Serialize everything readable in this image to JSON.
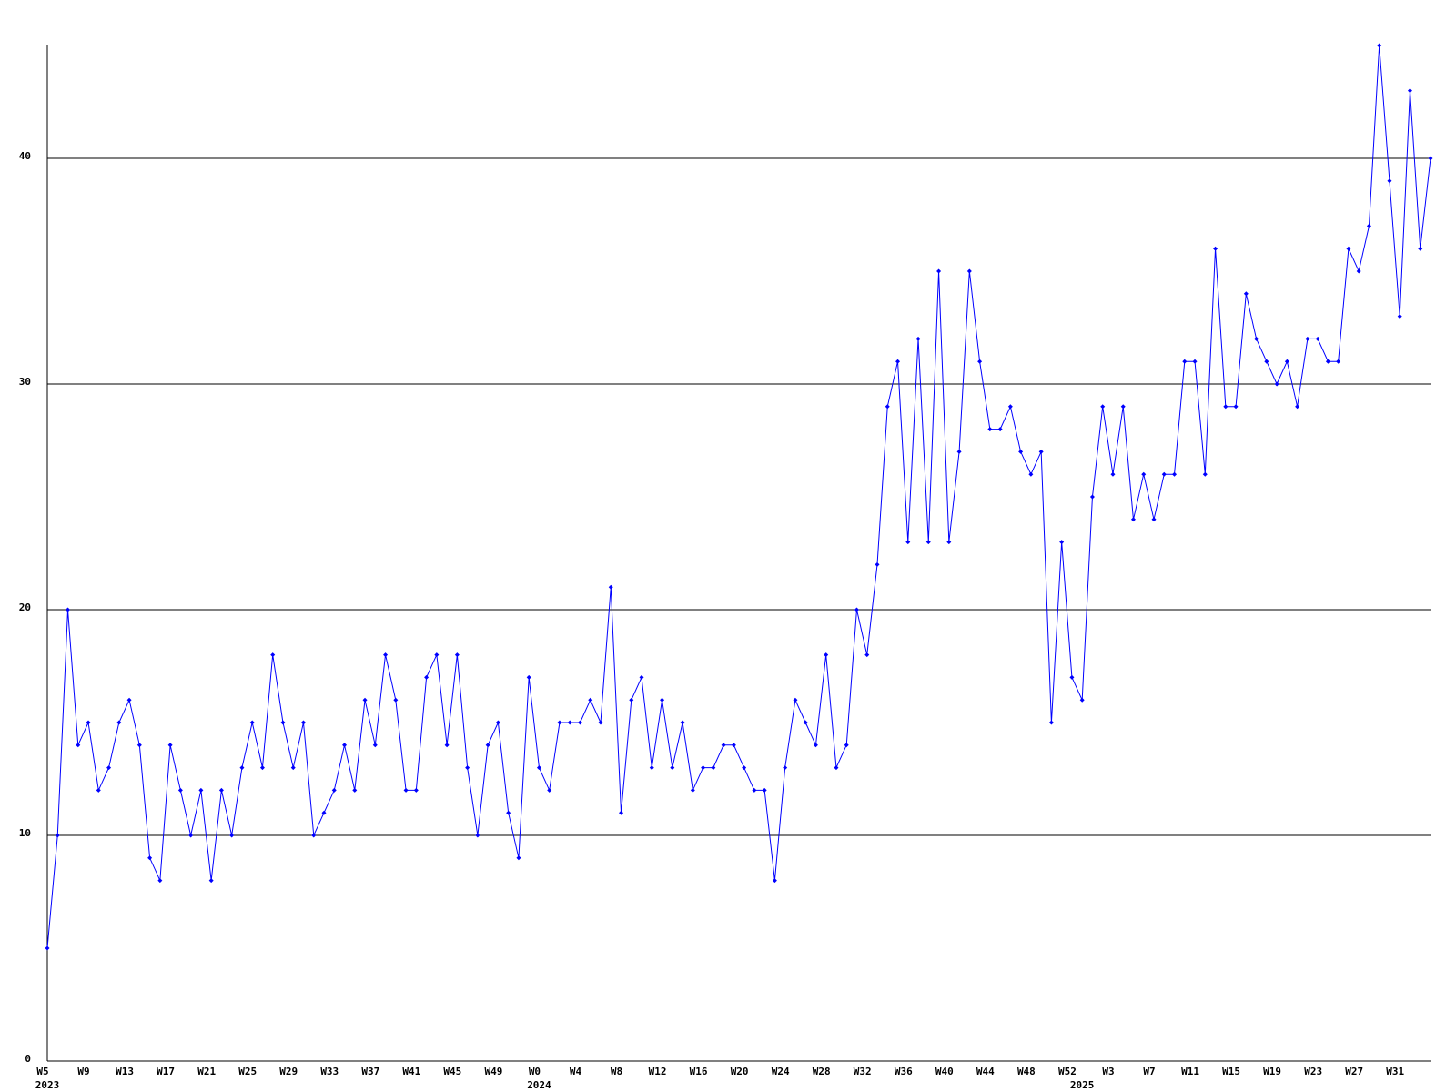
{
  "chart_data": {
    "type": "line",
    "categories": [
      "W5",
      null,
      null,
      null,
      "W9",
      null,
      null,
      null,
      "W13",
      null,
      null,
      null,
      "W17",
      null,
      null,
      null,
      "W21",
      null,
      null,
      null,
      "W25",
      null,
      null,
      null,
      "W29",
      null,
      null,
      null,
      "W33",
      null,
      null,
      null,
      "W37",
      null,
      null,
      null,
      "W41",
      null,
      null,
      null,
      "W45",
      null,
      null,
      null,
      "W49",
      null,
      null,
      null,
      "W0",
      null,
      null,
      null,
      "W4",
      null,
      null,
      null,
      "W8",
      null,
      null,
      null,
      "W12",
      null,
      null,
      null,
      "W16",
      null,
      null,
      null,
      "W20",
      null,
      null,
      null,
      "W24",
      null,
      null,
      null,
      "W28",
      null,
      null,
      null,
      "W32",
      null,
      null,
      null,
      "W36",
      null,
      null,
      null,
      "W40",
      null,
      null,
      null,
      "W44",
      null,
      null,
      null,
      "W48",
      null,
      null,
      null,
      "W52",
      null,
      null,
      null,
      "W3",
      null,
      null,
      null,
      "W7",
      null,
      null,
      null,
      "W11",
      null,
      null,
      null,
      "W15",
      null,
      null,
      null,
      "W19",
      null,
      null,
      null,
      "W23",
      null,
      null,
      null,
      "W27",
      null,
      null,
      null,
      "W31",
      null,
      null,
      null
    ],
    "year_labels": [
      "2023",
      null,
      null,
      null,
      null,
      null,
      null,
      null,
      null,
      null,
      null,
      null,
      null,
      null,
      null,
      null,
      null,
      null,
      null,
      null,
      null,
      null,
      null,
      null,
      null,
      null,
      null,
      null,
      null,
      null,
      null,
      null,
      null,
      null,
      null,
      null,
      null,
      null,
      null,
      null,
      null,
      null,
      null,
      null,
      null,
      null,
      null,
      null,
      "2024",
      null,
      null,
      null,
      null,
      null,
      null,
      null,
      null,
      null,
      null,
      null,
      null,
      null,
      null,
      null,
      null,
      null,
      null,
      null,
      null,
      null,
      null,
      null,
      null,
      null,
      null,
      null,
      null,
      null,
      null,
      null,
      null,
      null,
      null,
      null,
      null,
      null,
      null,
      null,
      null,
      null,
      null,
      null,
      null,
      null,
      null,
      null,
      null,
      null,
      null,
      null,
      null,
      "2025",
      null,
      null,
      null,
      null,
      null,
      null,
      null,
      null,
      null,
      null,
      null,
      null,
      null,
      null,
      null,
      null,
      null,
      null,
      null,
      null,
      null,
      null,
      null,
      null,
      null,
      null,
      null,
      null,
      null,
      null,
      null,
      null,
      null,
      null
    ],
    "series": [
      {
        "color": "#0000ff",
        "values": [
          5,
          10,
          20,
          14,
          15,
          12,
          13,
          15,
          16,
          14,
          9,
          8,
          14,
          12,
          10,
          12,
          8,
          12,
          10,
          13,
          15,
          13,
          18,
          15,
          13,
          15,
          10,
          11,
          12,
          14,
          12,
          16,
          14,
          18,
          16,
          12,
          12,
          17,
          18,
          14,
          18,
          13,
          10,
          14,
          15,
          11,
          9,
          17,
          13,
          12,
          15,
          15,
          15,
          16,
          15,
          21,
          11,
          16,
          17,
          13,
          16,
          13,
          15,
          12,
          13,
          13,
          14,
          14,
          13,
          12,
          12,
          8,
          13,
          16,
          15,
          14,
          18,
          13,
          14,
          20,
          18,
          22,
          29,
          31,
          23,
          32,
          23,
          35,
          23,
          27,
          35,
          31,
          28,
          28,
          29,
          27,
          26,
          27,
          15,
          23,
          17,
          16,
          25,
          29,
          26,
          29,
          24,
          26,
          24,
          26,
          26,
          31,
          31,
          26,
          36,
          29,
          29,
          34,
          32,
          31,
          30,
          31,
          29,
          32,
          32,
          31,
          31,
          36,
          35,
          37,
          45,
          39,
          33,
          43,
          36,
          40
        ]
      }
    ],
    "ylim": [
      0,
      45
    ],
    "yticks": [
      0,
      10,
      20,
      30,
      40
    ],
    "grid": true
  }
}
